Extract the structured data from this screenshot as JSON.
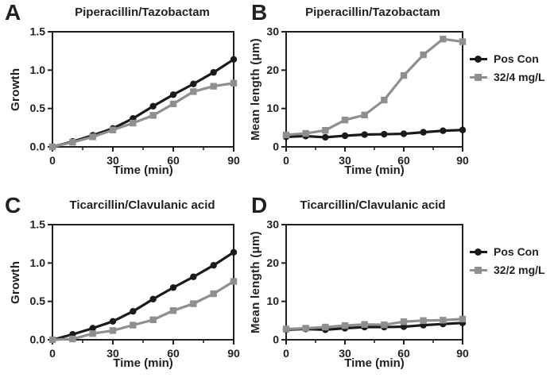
{
  "colors": {
    "axis": "#231f20",
    "pos_con": "#1a1a1a",
    "treatment": "#8f8f8f"
  },
  "chart_data": [
    {
      "letter": "A",
      "type": "line",
      "title": "Piperacillin/Tazobactam",
      "xlabel": "Time (min)",
      "ylabel": "Growth",
      "x": [
        0,
        10,
        20,
        30,
        40,
        50,
        60,
        70,
        80,
        90
      ],
      "xlim": [
        0,
        90
      ],
      "xticks": [
        0,
        30,
        60,
        90
      ],
      "xtick_labels": [
        "0",
        "30",
        "60",
        "90"
      ],
      "x_minor_ticks": [
        15,
        45,
        75
      ],
      "ylim": [
        0,
        1.5
      ],
      "yticks": [
        0,
        0.5,
        1,
        1.5
      ],
      "ytick_labels": [
        "0.0",
        "0.5",
        "1.0",
        "1.5"
      ],
      "grid": false,
      "legend_position": "none",
      "series": [
        {
          "name": "Pos Con",
          "marker": "circle",
          "color": "#1a1a1a",
          "values": [
            0.0,
            0.07,
            0.15,
            0.24,
            0.37,
            0.53,
            0.68,
            0.82,
            0.97,
            1.14
          ]
        },
        {
          "name": "32/4 mg/L",
          "marker": "square",
          "color": "#8f8f8f",
          "values": [
            0.0,
            0.06,
            0.13,
            0.22,
            0.31,
            0.41,
            0.56,
            0.72,
            0.79,
            0.83
          ]
        }
      ]
    },
    {
      "letter": "B",
      "type": "line",
      "title": "Piperacillin/Tazobactam",
      "xlabel": "Time (min)",
      "ylabel": "Mean length (μm)",
      "x": [
        0,
        10,
        20,
        30,
        40,
        50,
        60,
        70,
        80,
        90
      ],
      "xlim": [
        0,
        90
      ],
      "xticks": [
        0,
        30,
        60,
        90
      ],
      "xtick_labels": [
        "0",
        "30",
        "60",
        "90"
      ],
      "x_minor_ticks": [
        15,
        45,
        75
      ],
      "ylim": [
        0,
        30
      ],
      "yticks": [
        0,
        10,
        20,
        30
      ],
      "ytick_labels": [
        "0",
        "10",
        "20",
        "30"
      ],
      "grid": false,
      "legend_position": "right",
      "series": [
        {
          "name": "Pos Con",
          "marker": "circle",
          "color": "#1a1a1a",
          "values": [
            2.6,
            2.8,
            2.5,
            2.9,
            3.2,
            3.3,
            3.4,
            3.8,
            4.2,
            4.4
          ]
        },
        {
          "name": "32/4 mg/L",
          "marker": "square",
          "color": "#8f8f8f",
          "values": [
            3.1,
            3.5,
            4.3,
            7.0,
            8.3,
            12.2,
            18.6,
            24.0,
            28.1,
            27.4
          ]
        }
      ]
    },
    {
      "letter": "C",
      "type": "line",
      "title": "Ticarcillin/Clavulanic acid",
      "xlabel": "Time (min)",
      "ylabel": "Growth",
      "x": [
        0,
        10,
        20,
        30,
        40,
        50,
        60,
        70,
        80,
        90
      ],
      "xlim": [
        0,
        90
      ],
      "xticks": [
        0,
        30,
        60,
        90
      ],
      "xtick_labels": [
        "0",
        "30",
        "60",
        "90"
      ],
      "x_minor_ticks": [
        15,
        45,
        75
      ],
      "ylim": [
        0,
        1.5
      ],
      "yticks": [
        0,
        0.5,
        1,
        1.5
      ],
      "ytick_labels": [
        "0.0",
        "0.5",
        "1.0",
        "1.5"
      ],
      "grid": false,
      "legend_position": "none",
      "series": [
        {
          "name": "Pos Con",
          "marker": "circle",
          "color": "#1a1a1a",
          "values": [
            0.0,
            0.07,
            0.15,
            0.24,
            0.37,
            0.53,
            0.68,
            0.82,
            0.97,
            1.14
          ]
        },
        {
          "name": "32/2 mg/L",
          "marker": "square",
          "color": "#8f8f8f",
          "values": [
            0.0,
            0.01,
            0.08,
            0.12,
            0.19,
            0.26,
            0.38,
            0.47,
            0.6,
            0.76
          ]
        }
      ]
    },
    {
      "letter": "D",
      "type": "line",
      "title": "Ticarcillin/Clavulanic acid",
      "xlabel": "Time (min)",
      "ylabel": "Mean length (μm)",
      "x": [
        0,
        10,
        20,
        30,
        40,
        50,
        60,
        70,
        80,
        90
      ],
      "xlim": [
        0,
        90
      ],
      "xticks": [
        0,
        30,
        60,
        90
      ],
      "xtick_labels": [
        "0",
        "30",
        "60",
        "90"
      ],
      "x_minor_ticks": [
        15,
        45,
        75
      ],
      "ylim": [
        0,
        30
      ],
      "yticks": [
        0,
        10,
        20,
        30
      ],
      "ytick_labels": [
        "0",
        "10",
        "20",
        "30"
      ],
      "grid": false,
      "legend_position": "right",
      "series": [
        {
          "name": "Pos Con",
          "marker": "circle",
          "color": "#1a1a1a",
          "values": [
            2.6,
            2.8,
            2.6,
            3.0,
            3.3,
            3.3,
            3.4,
            3.8,
            4.1,
            4.4
          ]
        },
        {
          "name": "32/2 mg/L",
          "marker": "square",
          "color": "#8f8f8f",
          "values": [
            2.8,
            3.0,
            3.3,
            3.7,
            4.0,
            3.9,
            4.7,
            5.0,
            5.1,
            5.4
          ]
        }
      ]
    }
  ]
}
